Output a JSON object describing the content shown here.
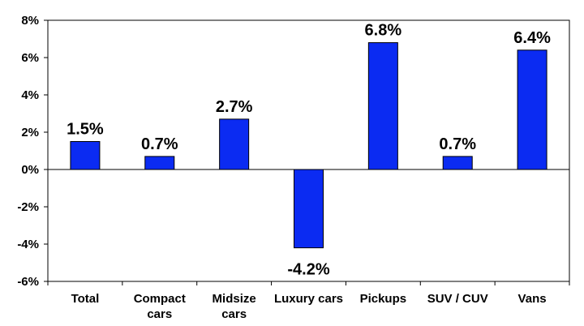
{
  "chart_data": {
    "type": "bar",
    "categories": [
      [
        "Total"
      ],
      [
        "Compact",
        "cars"
      ],
      [
        "Midsize",
        "cars"
      ],
      [
        "Luxury cars"
      ],
      [
        "Pickups"
      ],
      [
        "SUV / CUV"
      ],
      [
        "Vans"
      ]
    ],
    "values": [
      1.5,
      0.7,
      2.7,
      -4.2,
      6.8,
      0.7,
      6.4
    ],
    "data_labels": [
      "1.5%",
      "0.7%",
      "2.7%",
      "-4.2%",
      "6.8%",
      "0.7%",
      "6.4%"
    ],
    "ylim": [
      -6,
      8
    ],
    "yticks": [
      -6,
      -4,
      -2,
      0,
      2,
      4,
      6,
      8
    ],
    "ytick_labels": [
      "-6%",
      "-4%",
      "-2%",
      "0%",
      "2%",
      "4%",
      "6%",
      "8%"
    ],
    "grid": false,
    "legend": "none",
    "title": "",
    "xlabel": "",
    "ylabel": "",
    "bar_color": "#0b2bf2"
  }
}
